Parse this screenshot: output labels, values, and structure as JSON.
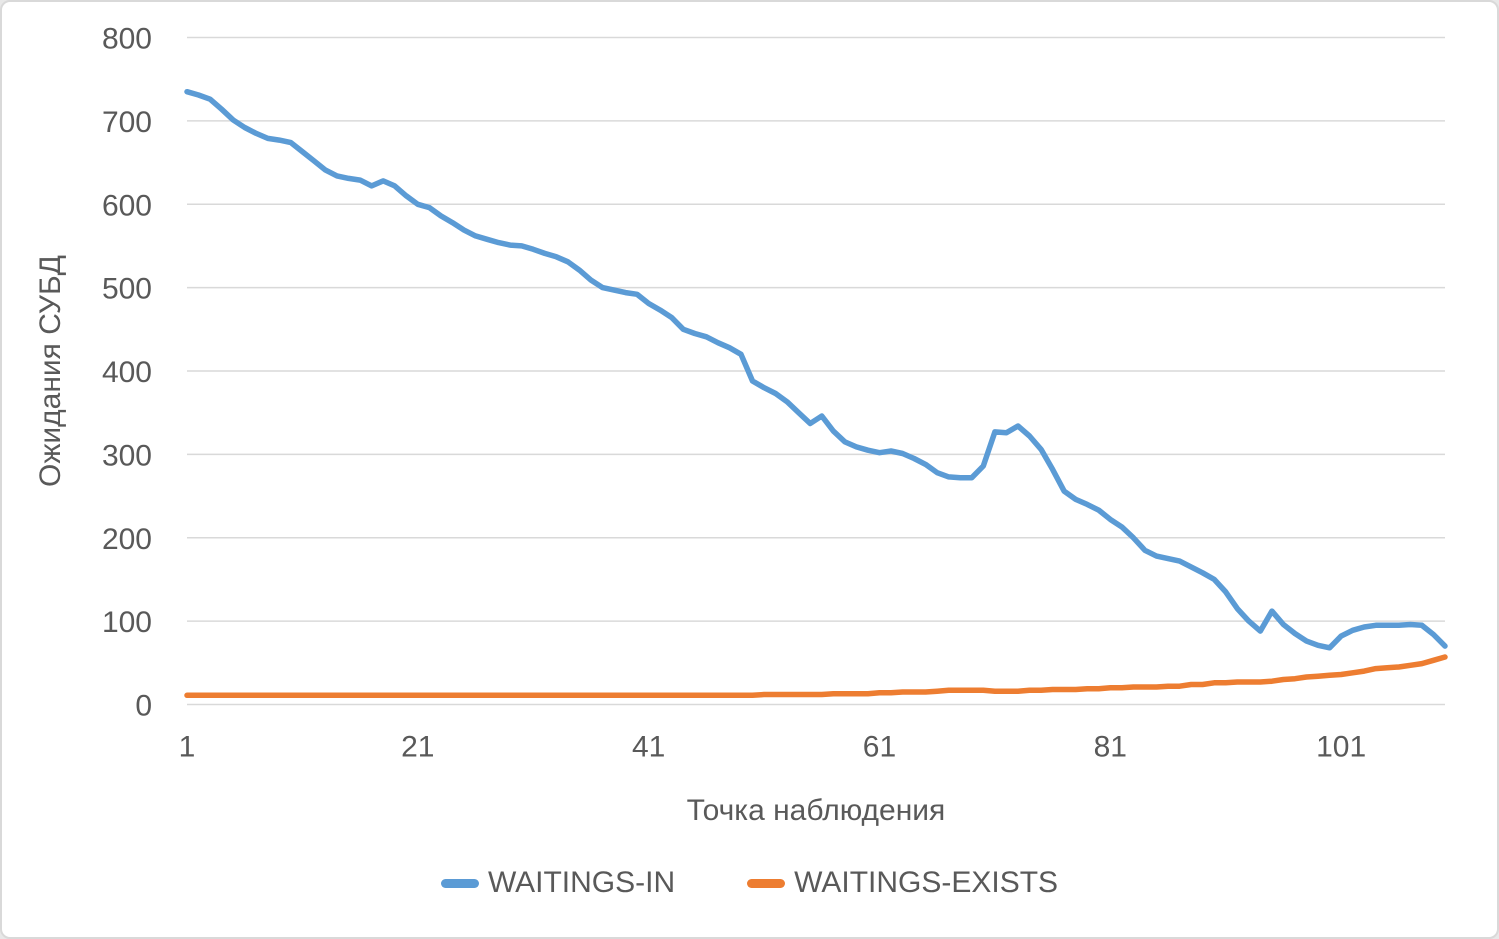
{
  "colors": {
    "background": "#FFFFFF",
    "border": "#D9D9D9",
    "gridline": "#D9D9D9",
    "text": "#595959",
    "series_blue": "#5B9BD5",
    "series_orange": "#ED7D31"
  },
  "chart_data": {
    "type": "line",
    "title": "",
    "xlabel": "Точка наблюдения",
    "ylabel": "Ожидания СУБД",
    "ylim": [
      0,
      800
    ],
    "y_ticks": [
      0,
      100,
      200,
      300,
      400,
      500,
      600,
      700,
      800
    ],
    "x_ticks": [
      1,
      21,
      41,
      61,
      81,
      101
    ],
    "grid": "horizontal",
    "legend_position": "bottom",
    "x": [
      1,
      2,
      3,
      4,
      5,
      6,
      7,
      8,
      9,
      10,
      11,
      12,
      13,
      14,
      15,
      16,
      17,
      18,
      19,
      20,
      21,
      22,
      23,
      24,
      25,
      26,
      27,
      28,
      29,
      30,
      31,
      32,
      33,
      34,
      35,
      36,
      37,
      38,
      39,
      40,
      41,
      42,
      43,
      44,
      45,
      46,
      47,
      48,
      49,
      50,
      51,
      52,
      53,
      54,
      55,
      56,
      57,
      58,
      59,
      60,
      61,
      62,
      63,
      64,
      65,
      66,
      67,
      68,
      69,
      70,
      71,
      72,
      73,
      74,
      75,
      76,
      77,
      78,
      79,
      80,
      81,
      82,
      83,
      84,
      85,
      86,
      87,
      88,
      89,
      90,
      91,
      92,
      93,
      94,
      95,
      96,
      97,
      98,
      99,
      100,
      101,
      102,
      103,
      104,
      105,
      106,
      107,
      108,
      109,
      110
    ],
    "series": [
      {
        "name": "WAITINGS-IN",
        "color": "#5B9BD5",
        "values": [
          735,
          731,
          726,
          714,
          701,
          692,
          685,
          679,
          677,
          674,
          663,
          652,
          641,
          634,
          631,
          629,
          622,
          628,
          622,
          610,
          600,
          596,
          586,
          578,
          569,
          562,
          558,
          554,
          551,
          550,
          546,
          541,
          537,
          531,
          521,
          509,
          500,
          497,
          494,
          492,
          481,
          473,
          464,
          450,
          445,
          441,
          434,
          428,
          420,
          388,
          380,
          373,
          363,
          350,
          337,
          346,
          328,
          315,
          309,
          305,
          302,
          304,
          301,
          295,
          288,
          278,
          273,
          272,
          272,
          286,
          327,
          326,
          334,
          322,
          306,
          282,
          256,
          246,
          240,
          233,
          222,
          213,
          200,
          185,
          178,
          175,
          172,
          165,
          158,
          150,
          135,
          115,
          100,
          88,
          112,
          96,
          85,
          76,
          71,
          68,
          82,
          89,
          93,
          95,
          95,
          95,
          96,
          95,
          84,
          70
        ]
      },
      {
        "name": "WAITINGS-EXISTS",
        "color": "#ED7D31",
        "values": [
          11,
          11,
          11,
          11,
          11,
          11,
          11,
          11,
          11,
          11,
          11,
          11,
          11,
          11,
          11,
          11,
          11,
          11,
          11,
          11,
          11,
          11,
          11,
          11,
          11,
          11,
          11,
          11,
          11,
          11,
          11,
          11,
          11,
          11,
          11,
          11,
          11,
          11,
          11,
          11,
          11,
          11,
          11,
          11,
          11,
          11,
          11,
          11,
          11,
          11,
          12,
          12,
          12,
          12,
          12,
          12,
          13,
          13,
          13,
          13,
          14,
          14,
          15,
          15,
          15,
          16,
          17,
          17,
          17,
          17,
          16,
          16,
          16,
          17,
          17,
          18,
          18,
          18,
          19,
          19,
          20,
          20,
          21,
          21,
          21,
          22,
          22,
          24,
          24,
          26,
          26,
          27,
          27,
          27,
          28,
          30,
          31,
          33,
          34,
          35,
          36,
          38,
          40,
          43,
          44,
          45,
          47,
          49,
          53,
          57
        ]
      }
    ]
  }
}
